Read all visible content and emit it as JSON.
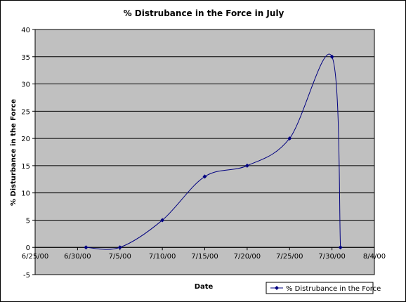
{
  "chart_data": {
    "type": "line",
    "title": "% Distrubance in the Force in July",
    "xlabel": "Date",
    "ylabel": "% Disturbance in the Force",
    "ylim": [
      -5,
      40
    ],
    "yticks": [
      "-5",
      "0",
      "5",
      "10",
      "15",
      "20",
      "25",
      "30",
      "35",
      "40"
    ],
    "xlim": [
      "6/25/00",
      "8/4/00"
    ],
    "xticks": [
      "6/25/00",
      "6/30/00",
      "7/5/00",
      "7/10/00",
      "7/15/00",
      "7/20/00",
      "7/25/00",
      "7/30/00",
      "8/4/00"
    ],
    "grid": true,
    "legend_position": "bottom-right",
    "series": [
      {
        "name": "% Distrubance in the Force",
        "color": "#000080",
        "marker": "diamond",
        "smooth": true,
        "points": [
          {
            "x": "7/1/00",
            "y": 0
          },
          {
            "x": "7/5/00",
            "y": 0
          },
          {
            "x": "7/10/00",
            "y": 5
          },
          {
            "x": "7/15/00",
            "y": 13
          },
          {
            "x": "7/20/00",
            "y": 15
          },
          {
            "x": "7/25/00",
            "y": 20
          },
          {
            "x": "7/30/00",
            "y": 35
          },
          {
            "x": "7/31/00",
            "y": 0
          }
        ]
      }
    ]
  }
}
